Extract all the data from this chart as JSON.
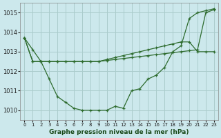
{
  "title": "Graphe pression niveau de la mer (hPa)",
  "bg_color": "#cce8ec",
  "grid_color": "#aacccc",
  "line_color": "#2d6b2d",
  "x_labels": [
    "0",
    "1",
    "2",
    "3",
    "4",
    "5",
    "6",
    "7",
    "8",
    "9",
    "10",
    "11",
    "12",
    "13",
    "14",
    "15",
    "16",
    "17",
    "18",
    "19",
    "20",
    "21",
    "22",
    "23"
  ],
  "ylim": [
    1009.5,
    1015.5
  ],
  "yticks": [
    1010,
    1011,
    1012,
    1013,
    1014,
    1015
  ],
  "series1": [
    1013.7,
    1013.1,
    1012.5,
    1011.6,
    1010.7,
    1010.4,
    1010.1,
    1010.0,
    1010.0,
    1010.0,
    1010.0,
    1010.2,
    1010.1,
    1011.0,
    1011.1,
    1011.6,
    1011.8,
    1012.2,
    1013.0,
    1013.3,
    1014.7,
    1015.0,
    1015.1,
    1015.2
  ],
  "series2": [
    1013.7,
    1012.5,
    1012.5,
    1012.5,
    1012.5,
    1012.5,
    1012.5,
    1012.5,
    1012.5,
    1012.5,
    1012.55,
    1012.6,
    1012.65,
    1012.7,
    1012.75,
    1012.8,
    1012.85,
    1012.9,
    1012.95,
    1013.0,
    1013.05,
    1013.1,
    1015.0,
    1015.15
  ],
  "series3": [
    1013.7,
    1012.5,
    1012.5,
    1012.5,
    1012.5,
    1012.5,
    1012.5,
    1012.5,
    1012.5,
    1012.5,
    1012.6,
    1012.7,
    1012.8,
    1012.9,
    1013.0,
    1013.1,
    1013.2,
    1013.3,
    1013.4,
    1013.5,
    1013.5,
    1013.0,
    1013.0,
    1013.0
  ]
}
